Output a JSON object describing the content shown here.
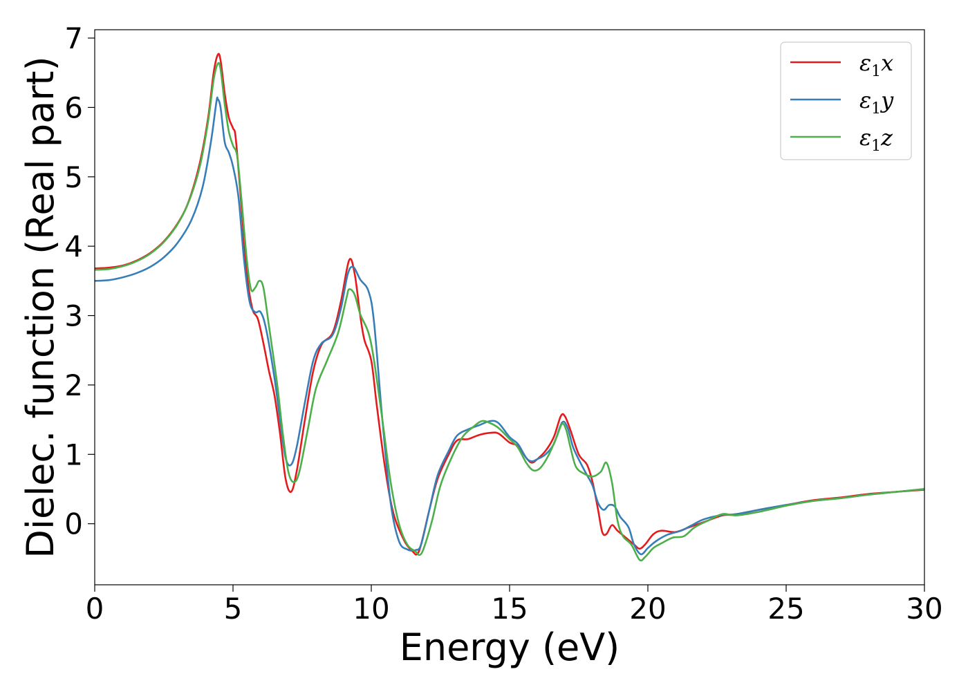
{
  "chart_data": {
    "type": "line",
    "title": "",
    "xlabel": "Energy (eV)",
    "ylabel": "Dielec. function (Real part)",
    "xlim": [
      0,
      30
    ],
    "ylim": [
      -0.88,
      7.12
    ],
    "xticks": [
      "0",
      "5",
      "10",
      "15",
      "20",
      "25",
      "30"
    ],
    "yticks": [
      "0",
      "1",
      "2",
      "3",
      "4",
      "5",
      "6",
      "7"
    ],
    "grid": false,
    "legend_position": "top-right",
    "series": [
      {
        "name": "ε1x",
        "legend": {
          "symbol": "ε",
          "sub": "1",
          "var": "x"
        },
        "color": "#e41a1c",
        "points": [
          [
            0,
            3.68
          ],
          [
            0.5,
            3.69
          ],
          [
            1,
            3.72
          ],
          [
            1.5,
            3.79
          ],
          [
            2,
            3.9
          ],
          [
            2.5,
            4.07
          ],
          [
            3,
            4.33
          ],
          [
            3.4,
            4.65
          ],
          [
            3.8,
            5.2
          ],
          [
            4.1,
            5.85
          ],
          [
            4.3,
            6.5
          ],
          [
            4.45,
            6.76
          ],
          [
            4.55,
            6.68
          ],
          [
            4.7,
            6.2
          ],
          [
            4.85,
            5.85
          ],
          [
            5.0,
            5.7
          ],
          [
            5.1,
            5.55
          ],
          [
            5.3,
            4.6
          ],
          [
            5.5,
            3.6
          ],
          [
            5.7,
            3.1
          ],
          [
            5.9,
            2.95
          ],
          [
            6.1,
            2.6
          ],
          [
            6.3,
            2.2
          ],
          [
            6.5,
            1.85
          ],
          [
            6.7,
            1.3
          ],
          [
            6.9,
            0.65
          ],
          [
            7.1,
            0.46
          ],
          [
            7.3,
            0.75
          ],
          [
            7.6,
            1.5
          ],
          [
            7.9,
            2.2
          ],
          [
            8.2,
            2.58
          ],
          [
            8.6,
            2.75
          ],
          [
            8.9,
            3.2
          ],
          [
            9.2,
            3.8
          ],
          [
            9.4,
            3.6
          ],
          [
            9.6,
            3.0
          ],
          [
            9.75,
            2.65
          ],
          [
            10.0,
            2.35
          ],
          [
            10.2,
            1.7
          ],
          [
            10.5,
            0.8
          ],
          [
            10.8,
            0.15
          ],
          [
            11.2,
            -0.25
          ],
          [
            11.5,
            -0.4
          ],
          [
            11.65,
            -0.44
          ],
          [
            11.8,
            -0.3
          ],
          [
            12.1,
            0.2
          ],
          [
            12.4,
            0.65
          ],
          [
            12.8,
            1.0
          ],
          [
            13.1,
            1.2
          ],
          [
            13.5,
            1.22
          ],
          [
            13.9,
            1.28
          ],
          [
            14.3,
            1.31
          ],
          [
            14.6,
            1.3
          ],
          [
            15.0,
            1.17
          ],
          [
            15.3,
            1.12
          ],
          [
            15.6,
            0.95
          ],
          [
            15.8,
            0.88
          ],
          [
            16.0,
            0.93
          ],
          [
            16.3,
            1.05
          ],
          [
            16.6,
            1.25
          ],
          [
            16.85,
            1.55
          ],
          [
            17.0,
            1.55
          ],
          [
            17.2,
            1.35
          ],
          [
            17.5,
            1.0
          ],
          [
            17.8,
            0.85
          ],
          [
            18.0,
            0.6
          ],
          [
            18.2,
            0.2
          ],
          [
            18.35,
            -0.12
          ],
          [
            18.5,
            -0.15
          ],
          [
            18.7,
            -0.02
          ],
          [
            18.9,
            -0.1
          ],
          [
            19.2,
            -0.2
          ],
          [
            19.5,
            -0.3
          ],
          [
            19.7,
            -0.36
          ],
          [
            19.9,
            -0.3
          ],
          [
            20.2,
            -0.15
          ],
          [
            20.5,
            -0.1
          ],
          [
            21.0,
            -0.12
          ],
          [
            21.5,
            -0.05
          ],
          [
            22.0,
            0.02
          ],
          [
            22.7,
            0.12
          ],
          [
            23.2,
            0.13
          ],
          [
            24.0,
            0.2
          ],
          [
            25.0,
            0.27
          ],
          [
            26.0,
            0.34
          ],
          [
            27.0,
            0.38
          ],
          [
            28.0,
            0.43
          ],
          [
            29.0,
            0.46
          ],
          [
            30.0,
            0.49
          ]
        ]
      },
      {
        "name": "ε1y",
        "legend": {
          "symbol": "ε",
          "sub": "1",
          "var": "y"
        },
        "color": "#377eb8",
        "points": [
          [
            0,
            3.5
          ],
          [
            0.5,
            3.51
          ],
          [
            1,
            3.55
          ],
          [
            1.5,
            3.61
          ],
          [
            2,
            3.7
          ],
          [
            2.5,
            3.84
          ],
          [
            3,
            4.05
          ],
          [
            3.5,
            4.38
          ],
          [
            3.9,
            4.85
          ],
          [
            4.2,
            5.5
          ],
          [
            4.4,
            6.08
          ],
          [
            4.45,
            6.12
          ],
          [
            4.55,
            6.0
          ],
          [
            4.7,
            5.5
          ],
          [
            4.85,
            5.35
          ],
          [
            5.0,
            5.15
          ],
          [
            5.2,
            4.7
          ],
          [
            5.4,
            3.8
          ],
          [
            5.6,
            3.2
          ],
          [
            5.8,
            3.05
          ],
          [
            6.0,
            3.05
          ],
          [
            6.2,
            2.8
          ],
          [
            6.5,
            2.1
          ],
          [
            6.7,
            1.5
          ],
          [
            6.9,
            0.95
          ],
          [
            7.1,
            0.85
          ],
          [
            7.3,
            1.1
          ],
          [
            7.6,
            1.75
          ],
          [
            7.9,
            2.35
          ],
          [
            8.2,
            2.6
          ],
          [
            8.6,
            2.72
          ],
          [
            8.9,
            3.1
          ],
          [
            9.15,
            3.6
          ],
          [
            9.35,
            3.7
          ],
          [
            9.6,
            3.52
          ],
          [
            9.9,
            3.35
          ],
          [
            10.1,
            2.9
          ],
          [
            10.4,
            1.5
          ],
          [
            10.7,
            0.3
          ],
          [
            11.0,
            -0.25
          ],
          [
            11.3,
            -0.37
          ],
          [
            11.6,
            -0.38
          ],
          [
            11.8,
            -0.3
          ],
          [
            12.1,
            0.2
          ],
          [
            12.4,
            0.7
          ],
          [
            12.8,
            1.05
          ],
          [
            13.1,
            1.27
          ],
          [
            13.5,
            1.36
          ],
          [
            13.9,
            1.42
          ],
          [
            14.3,
            1.48
          ],
          [
            14.6,
            1.45
          ],
          [
            15.0,
            1.25
          ],
          [
            15.3,
            1.15
          ],
          [
            15.6,
            0.95
          ],
          [
            15.8,
            0.9
          ],
          [
            16.0,
            0.93
          ],
          [
            16.3,
            1.0
          ],
          [
            16.6,
            1.15
          ],
          [
            16.9,
            1.46
          ],
          [
            17.1,
            1.38
          ],
          [
            17.3,
            1.1
          ],
          [
            17.6,
            0.85
          ],
          [
            17.8,
            0.7
          ],
          [
            18.0,
            0.55
          ],
          [
            18.2,
            0.3
          ],
          [
            18.4,
            0.2
          ],
          [
            18.6,
            0.27
          ],
          [
            18.8,
            0.25
          ],
          [
            19.0,
            0.1
          ],
          [
            19.3,
            -0.05
          ],
          [
            19.5,
            -0.3
          ],
          [
            19.75,
            -0.44
          ],
          [
            20.0,
            -0.35
          ],
          [
            20.3,
            -0.25
          ],
          [
            20.7,
            -0.16
          ],
          [
            21.2,
            -0.1
          ],
          [
            21.6,
            -0.02
          ],
          [
            22.0,
            0.06
          ],
          [
            22.6,
            0.12
          ],
          [
            23.2,
            0.14
          ],
          [
            24.0,
            0.2
          ],
          [
            25.0,
            0.27
          ],
          [
            26.0,
            0.33
          ],
          [
            27.0,
            0.37
          ],
          [
            28.0,
            0.42
          ],
          [
            29.0,
            0.46
          ],
          [
            30.0,
            0.5
          ]
        ]
      },
      {
        "name": "ε1z",
        "legend": {
          "symbol": "ε",
          "sub": "1",
          "var": "z"
        },
        "color": "#4daf4a",
        "points": [
          [
            0,
            3.66
          ],
          [
            0.5,
            3.67
          ],
          [
            1,
            3.71
          ],
          [
            1.5,
            3.78
          ],
          [
            2,
            3.89
          ],
          [
            2.5,
            4.06
          ],
          [
            3,
            4.32
          ],
          [
            3.4,
            4.64
          ],
          [
            3.8,
            5.15
          ],
          [
            4.1,
            5.8
          ],
          [
            4.3,
            6.4
          ],
          [
            4.45,
            6.63
          ],
          [
            4.55,
            6.55
          ],
          [
            4.7,
            6.05
          ],
          [
            4.85,
            5.65
          ],
          [
            5.0,
            5.45
          ],
          [
            5.15,
            5.3
          ],
          [
            5.3,
            4.7
          ],
          [
            5.5,
            3.8
          ],
          [
            5.65,
            3.38
          ],
          [
            5.8,
            3.4
          ],
          [
            5.95,
            3.5
          ],
          [
            6.1,
            3.4
          ],
          [
            6.3,
            2.85
          ],
          [
            6.6,
            2.0
          ],
          [
            6.8,
            1.3
          ],
          [
            7.0,
            0.75
          ],
          [
            7.2,
            0.6
          ],
          [
            7.4,
            0.75
          ],
          [
            7.7,
            1.35
          ],
          [
            8.0,
            1.95
          ],
          [
            8.4,
            2.35
          ],
          [
            8.8,
            2.75
          ],
          [
            9.1,
            3.25
          ],
          [
            9.2,
            3.38
          ],
          [
            9.4,
            3.3
          ],
          [
            9.6,
            3.02
          ],
          [
            9.9,
            2.75
          ],
          [
            10.1,
            2.35
          ],
          [
            10.4,
            1.5
          ],
          [
            10.7,
            0.6
          ],
          [
            11.0,
            0.0
          ],
          [
            11.3,
            -0.3
          ],
          [
            11.6,
            -0.4
          ],
          [
            11.75,
            -0.45
          ],
          [
            11.9,
            -0.35
          ],
          [
            12.2,
            0.05
          ],
          [
            12.5,
            0.55
          ],
          [
            12.9,
            0.95
          ],
          [
            13.3,
            1.25
          ],
          [
            13.7,
            1.4
          ],
          [
            14.0,
            1.48
          ],
          [
            14.3,
            1.45
          ],
          [
            14.6,
            1.38
          ],
          [
            15.0,
            1.22
          ],
          [
            15.3,
            1.1
          ],
          [
            15.6,
            0.88
          ],
          [
            15.85,
            0.77
          ],
          [
            16.1,
            0.8
          ],
          [
            16.4,
            0.98
          ],
          [
            16.7,
            1.25
          ],
          [
            16.9,
            1.44
          ],
          [
            17.05,
            1.35
          ],
          [
            17.2,
            1.1
          ],
          [
            17.4,
            0.82
          ],
          [
            17.7,
            0.72
          ],
          [
            18.0,
            0.68
          ],
          [
            18.3,
            0.75
          ],
          [
            18.5,
            0.88
          ],
          [
            18.7,
            0.6
          ],
          [
            18.9,
            0.05
          ],
          [
            19.1,
            -0.18
          ],
          [
            19.4,
            -0.3
          ],
          [
            19.7,
            -0.52
          ],
          [
            19.9,
            -0.48
          ],
          [
            20.2,
            -0.35
          ],
          [
            20.5,
            -0.28
          ],
          [
            20.9,
            -0.2
          ],
          [
            21.3,
            -0.18
          ],
          [
            21.7,
            -0.05
          ],
          [
            22.2,
            0.05
          ],
          [
            22.7,
            0.14
          ],
          [
            23.2,
            0.12
          ],
          [
            24.0,
            0.17
          ],
          [
            25.0,
            0.26
          ],
          [
            26.0,
            0.33
          ],
          [
            27.0,
            0.37
          ],
          [
            28.0,
            0.42
          ],
          [
            29.0,
            0.46
          ],
          [
            30.0,
            0.5
          ]
        ]
      }
    ]
  }
}
